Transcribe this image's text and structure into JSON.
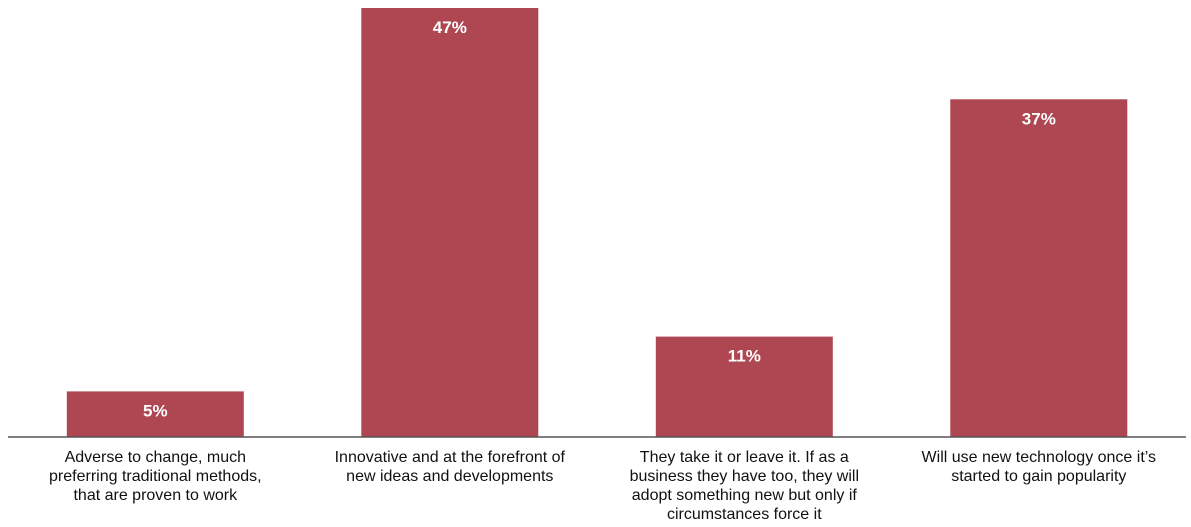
{
  "chart_data": {
    "type": "bar",
    "title": "",
    "xlabel": "",
    "ylabel": "",
    "ylim": [
      0,
      50
    ],
    "grid": false,
    "legend": "none",
    "bar_color": "#AE4752",
    "axis_color": "#555555",
    "categories": [
      [
        "Adverse to change, much",
        "preferring traditional methods,",
        "that are proven to work"
      ],
      [
        "Innovative and at the forefront of",
        "new ideas and developments"
      ],
      [
        "They take it or leave it. If as a",
        "business they have too, they will",
        "adopt something new but only if",
        "circumstances force it"
      ],
      [
        "Will use new technology once it’s",
        "started to gain popularity"
      ]
    ],
    "values": [
      5,
      47,
      11,
      37
    ],
    "value_labels": [
      "5%",
      "47%",
      "11%",
      "37%"
    ]
  }
}
